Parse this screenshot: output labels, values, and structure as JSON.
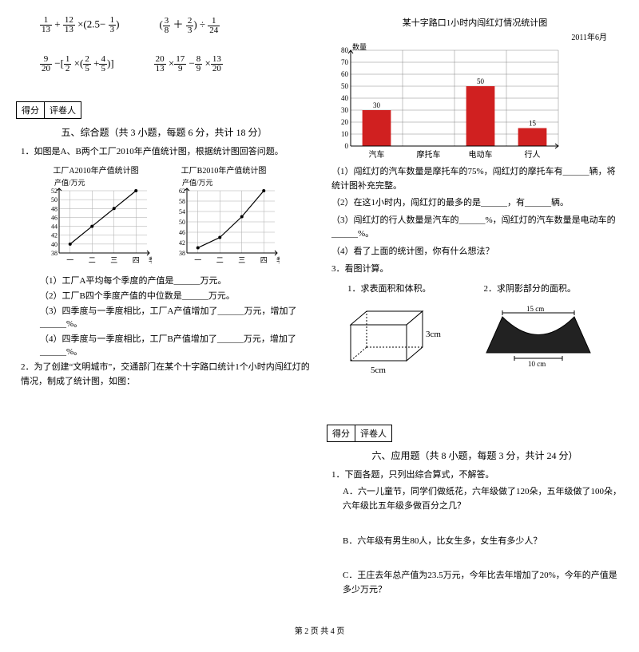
{
  "math_expressions": {
    "r1e1_parts": [
      "1",
      "13",
      "12",
      "13",
      "2.5",
      "1",
      "3"
    ],
    "r1e2_parts": [
      "3",
      "8",
      "2",
      "3",
      "1",
      "24"
    ],
    "r2e1_parts": [
      "9",
      "20",
      "1",
      "2",
      "2",
      "5",
      "4",
      "5"
    ],
    "r2e2_parts": [
      "20",
      "13",
      "17",
      "9",
      "8",
      "9",
      "13",
      "20"
    ]
  },
  "score_labels": {
    "score": "得分",
    "reviewer": "评卷人"
  },
  "section5": {
    "title": "五、综合题（共 3 小题，每题 6 分，共计 18 分）",
    "q1_intro": "1．如图是A、B两个工厂2010年产值统计图，根据统计图回答问题。",
    "chartA": {
      "title": "工厂A2010年产值统计图",
      "ylabel": "产值/万元",
      "xlabel": "季度",
      "xticks": [
        "一",
        "二",
        "三",
        "四"
      ],
      "yticks": [
        38,
        40,
        42,
        44,
        46,
        48,
        50,
        52
      ],
      "values": [
        40,
        44,
        48,
        52
      ],
      "line_color": "#000000",
      "bg": "#ffffff"
    },
    "chartB": {
      "title": "工厂B2010年产值统计图",
      "ylabel": "产值/万元",
      "xlabel": "季度",
      "xticks": [
        "一",
        "二",
        "三",
        "四"
      ],
      "yticks": [
        38,
        42,
        46,
        50,
        54,
        58,
        62
      ],
      "values": [
        40,
        44,
        52,
        62
      ],
      "line_color": "#000000",
      "bg": "#ffffff"
    },
    "fill": {
      "f1": "（1）工厂A平均每个季度的产值是______万元。",
      "f2": "（2）工厂B四个季度产值的中位数是______万元。",
      "f3": "（3）四季度与一季度相比，工厂A产值增加了______万元，增加了______%。",
      "f4": "（4）四季度与一季度相比，工厂B产值增加了______万元，增加了______%。"
    },
    "q2_intro": "2．为了创建“文明城市”，交通部门在某个十字路口统计1个小时内闯红灯的情况，制成了统计图，如图：",
    "barchart": {
      "title": "某十字路口1小时内闯红灯情况统计图",
      "date": "2011年6月",
      "ylabel": "数量",
      "yticks": [
        0,
        10,
        20,
        30,
        40,
        50,
        60,
        70,
        80
      ],
      "categories": [
        "汽车",
        "摩托车",
        "电动车",
        "行人"
      ],
      "values": [
        30,
        null,
        50,
        15
      ],
      "value_labels": [
        "30",
        "",
        "50",
        "15"
      ],
      "bar_color": "#d02020",
      "grid_color": "#888888",
      "bar_width": 0.55
    },
    "bar_fill": {
      "b1": "（1）闯红灯的汽车数量是摩托车的75%，闯红灯的摩托车有______辆，将统计图补充完整。",
      "b2": "（2）在这1小时内，闯红灯的最多的是______，有______辆。",
      "b3": "（3）闯红灯的行人数量是汽车的______%，闯红灯的汽车数量是电动车的______%。",
      "b4": "（4）看了上面的统计图，你有什么想法？"
    },
    "q3_intro": "3．看图计算。",
    "q3_sub1": "1．求表面积和体积。",
    "q3_sub2": "2．求阴影部分的面积。",
    "cuboid": {
      "w_label": "5cm",
      "h_label": "3cm"
    },
    "arch": {
      "top": "15 cm",
      "bot": "10 cm"
    }
  },
  "section6": {
    "title": "六、应用题（共 8 小题，每题 3 分，共计 24 分）",
    "q1": "1．下面各题，只列出综合算式，不解答。",
    "qA": "A．六一儿童节，同学们做纸花，六年级做了120朵，五年级做了100朵，六年级比五年级多做百分之几？",
    "qB": "B．六年级有男生80人，比女生多，女生有多少人？",
    "qC": "C．王庄去年总产值为23.5万元，今年比去年增加了20%，今年的产值是多少万元？"
  },
  "footer": "第 2 页 共 4 页"
}
